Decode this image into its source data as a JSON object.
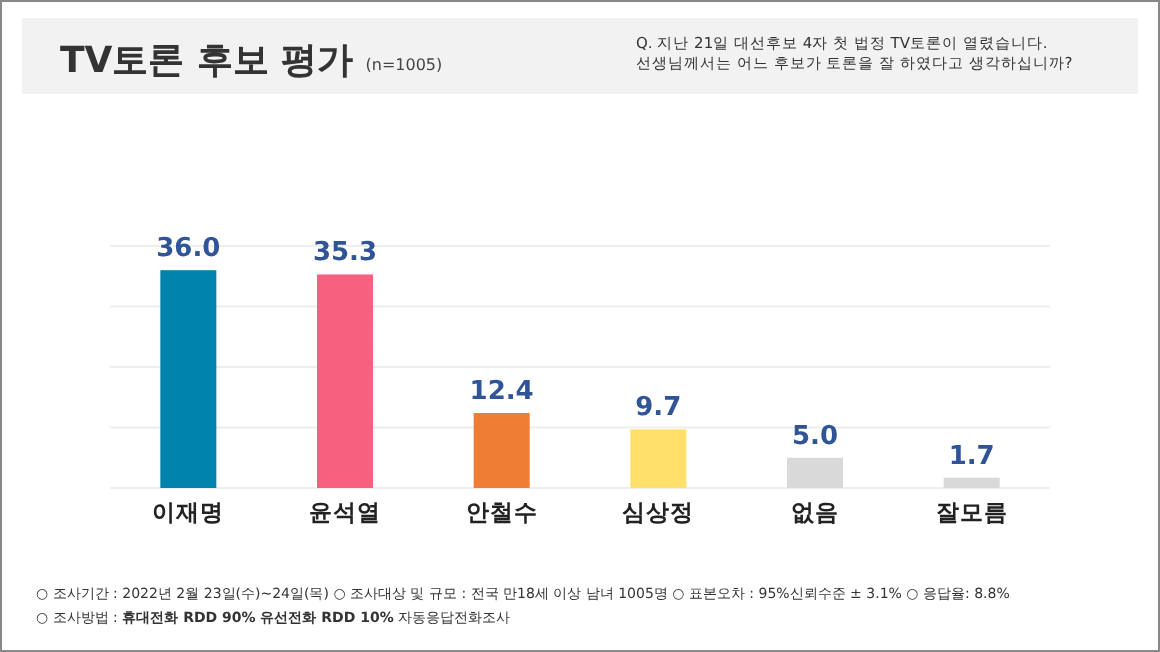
{
  "chart_data": {
    "type": "bar",
    "title": "TV토론 후보 평가",
    "subtitle": "(n=1005)",
    "categories": [
      "이재명",
      "윤석열",
      "안철수",
      "심상정",
      "없음",
      "잘모름"
    ],
    "values": [
      36.0,
      35.3,
      12.4,
      9.7,
      5.0,
      1.7
    ],
    "colors": [
      "#0083ad",
      "#f5617f",
      "#ee7d33",
      "#ffe06b",
      "#d9d9d9",
      "#d9d9d9"
    ],
    "ylim": [
      0,
      40
    ],
    "yticks": [
      {
        "value": 0,
        "label": null
      },
      {
        "value": 10,
        "label": null
      },
      {
        "value": 20,
        "label": null
      },
      {
        "value": 30,
        "label": null
      },
      {
        "value": 40,
        "label": null
      }
    ],
    "value_labels": [
      "36.0",
      "35.3",
      "12.4",
      "9.7",
      "5.0",
      "1.7"
    ],
    "grid": "y",
    "tick_labels": "x",
    "annotations": [
      "Q. 지난 21일 대선후보 4자 첫 법정 TV토론이 열렸습니다. 선생님께서는 어느 후보가 토론을 잘 하였다고 생각하십니까?",
      "○ 조사기간 : 2022년 2월 23일(수)~24일(목)    ○ 조사대상 및 규모 : 전국 만18세 이상 남녀 1005명    ○ 표본오차 : 95%신뢰수준 ± 3.1%  ○ 응답율: 8.8%",
      "○ 조사방법 : **휴대전화 RDD 90% 유선전화 RDD 10%** 자동응답전화조사"
    ]
  }
}
